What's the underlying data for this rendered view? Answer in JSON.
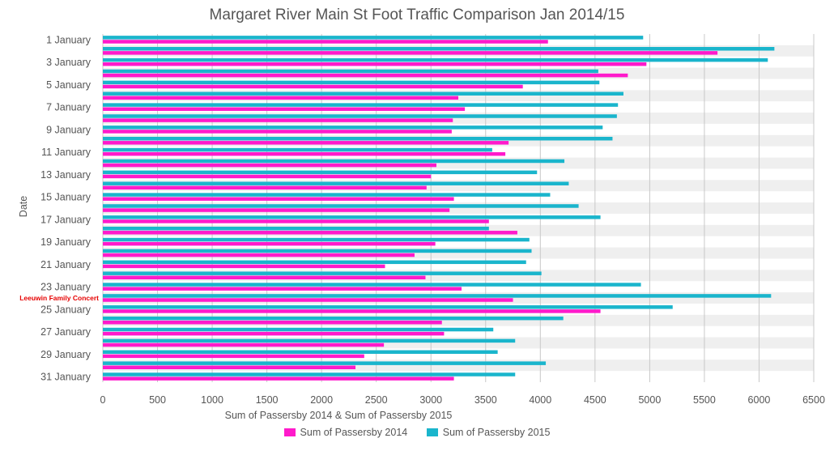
{
  "chart_data": {
    "type": "bar",
    "orientation": "horizontal",
    "title": "Margaret River Main St Foot Traffic Comparison Jan 2014/15",
    "xlabel": "Sum of Passersby 2014 & Sum of Passersby 2015",
    "ylabel": "Date",
    "xlim": [
      0,
      6500
    ],
    "xticks": [
      "0",
      "500",
      "1000",
      "1500",
      "2000",
      "2500",
      "3000",
      "3500",
      "4000",
      "4500",
      "5000",
      "5500",
      "6000",
      "6500"
    ],
    "ytick_labels": [
      "1 January",
      "3 January",
      "5 January",
      "7 January",
      "9 January",
      "11 January",
      "13 January",
      "15 January",
      "17 January",
      "19 January",
      "21 January",
      "23 January",
      "25 January",
      "27 January",
      "29 January",
      "31 January"
    ],
    "categories": [
      "1 January",
      "2 January",
      "3 January",
      "4 January",
      "5 January",
      "6 January",
      "7 January",
      "8 January",
      "9 January",
      "10 January",
      "11 January",
      "12 January",
      "13 January",
      "14 January",
      "15 January",
      "16 January",
      "17 January",
      "18 January",
      "19 January",
      "20 January",
      "21 January",
      "22 January",
      "23 January",
      "24 January",
      "25 January",
      "26 January",
      "27 January",
      "28 January",
      "29 January",
      "30 January",
      "31 January"
    ],
    "series": [
      {
        "name": "Sum of Passersby 2014",
        "color": "#ff1acb",
        "values": [
          4070,
          5620,
          4970,
          4800,
          3840,
          3250,
          3310,
          3200,
          3190,
          3710,
          3680,
          3050,
          3000,
          2960,
          3210,
          3170,
          3530,
          3790,
          3040,
          2850,
          2580,
          2950,
          3280,
          3750,
          4550,
          3100,
          3120,
          2570,
          2390,
          2310,
          3210
        ]
      },
      {
        "name": "Sum of Passersby 2015",
        "color": "#1ab5cc",
        "values": [
          4940,
          6140,
          6080,
          4530,
          4540,
          4760,
          4710,
          4700,
          4570,
          4660,
          3560,
          4220,
          3970,
          4260,
          4090,
          4350,
          4550,
          3530,
          3900,
          3920,
          3870,
          4010,
          4920,
          6110,
          5210,
          4210,
          3570,
          3770,
          3610,
          4050,
          3770
        ]
      }
    ],
    "annotations": [
      {
        "text": "Leeuwin Family Concert",
        "category": "24 January"
      }
    ],
    "grid": true,
    "legend_position": "bottom"
  }
}
